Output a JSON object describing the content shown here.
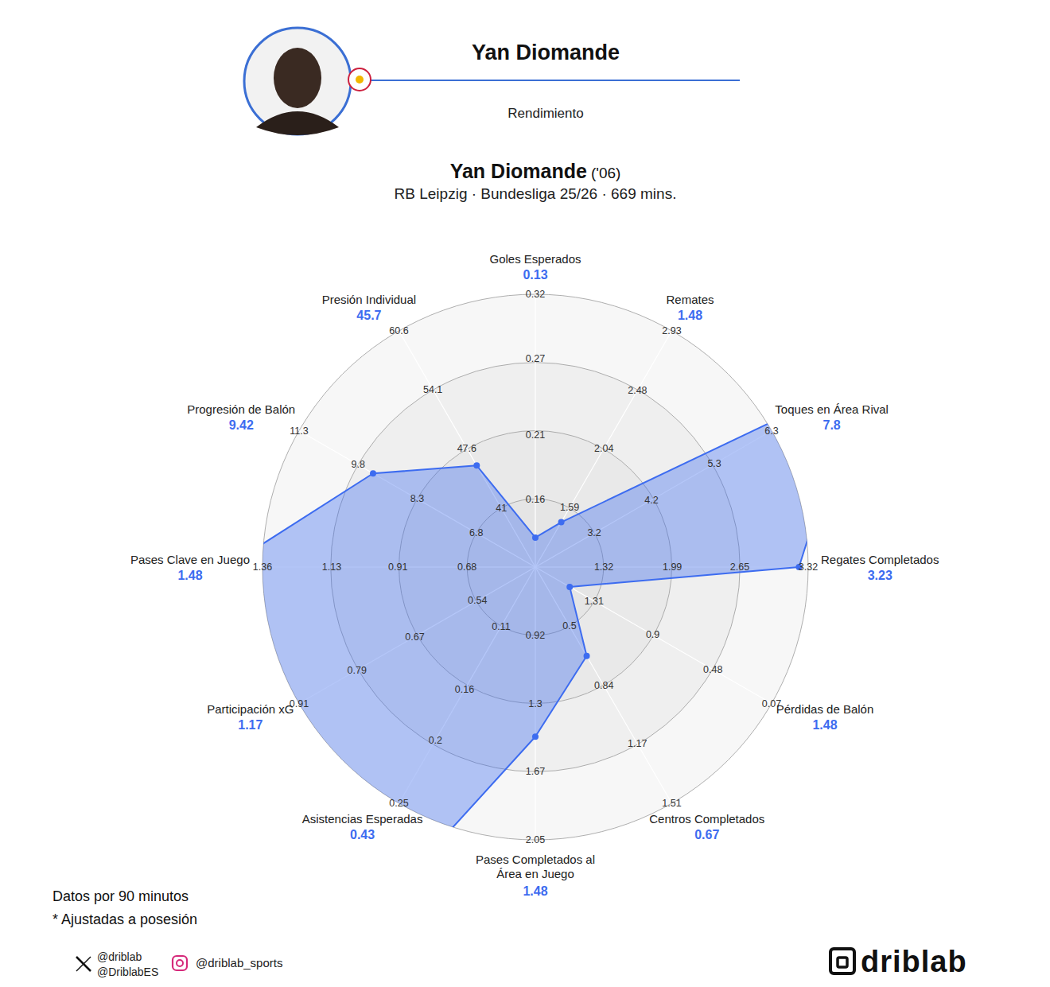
{
  "header": {
    "title": "Yan Diomande",
    "subtitle": "Rendimiento"
  },
  "chart_data": {
    "type": "radar",
    "title": "Yan Diomande",
    "title_suffix": "('06)",
    "subtitle": "RB Leipzig · Bundesliga 25/26 · 669 mins.",
    "categories": [
      "Goles Esperados",
      "Remates",
      "Toques en Área Rival",
      "Regates Completados",
      "Pérdidas de Balón",
      "Centros Completados",
      "Pases Completados al Área en Juego",
      "Asistencias Esperadas",
      "Participación xG",
      "Pases Clave en Juego",
      "Progresión de Balón",
      "Presión Individual"
    ],
    "values": [
      0.13,
      1.48,
      7.8,
      3.23,
      1.48,
      0.67,
      1.48,
      0.43,
      1.17,
      1.48,
      9.42,
      45.7
    ],
    "axis_ranges": [
      [
        0.107,
        0.32
      ],
      [
        1.14,
        2.93
      ],
      [
        2.17,
        6.3
      ],
      [
        0.65,
        3.32
      ],
      [
        1.72,
        0.07
      ],
      [
        0.163,
        1.51
      ],
      [
        0.543,
        2.05
      ],
      [
        0.063,
        0.25
      ],
      [
        0.42,
        0.91
      ],
      [
        0.453,
        1.36
      ],
      [
        5.3,
        11.3
      ],
      [
        34.47,
        60.6
      ]
    ],
    "axis_ticks": [
      [
        0.16,
        0.21,
        0.27,
        0.32
      ],
      [
        1.59,
        2.04,
        2.48,
        2.93
      ],
      [
        3.2,
        4.2,
        5.3,
        6.3
      ],
      [
        1.32,
        1.99,
        2.65,
        3.32
      ],
      [
        1.31,
        0.9,
        0.48,
        0.07
      ],
      [
        0.5,
        0.84,
        1.17,
        1.51
      ],
      [
        0.92,
        1.3,
        1.67,
        2.05
      ],
      [
        0.11,
        0.16,
        0.2,
        0.25
      ],
      [
        0.54,
        0.67,
        0.79,
        0.91
      ],
      [
        0.68,
        0.91,
        1.13,
        1.36
      ],
      [
        6.8,
        8.3,
        9.8,
        11.3
      ],
      [
        41,
        47.6,
        54.1,
        60.6
      ]
    ],
    "color": "#3d6cf0",
    "grid": true,
    "data_labels": true
  },
  "notes": [
    "Datos por 90 minutos",
    "* Ajustadas a posesión"
  ],
  "social": {
    "x": [
      "@driblab",
      "@DriblabES"
    ],
    "instagram": "@driblab_sports"
  },
  "brand": "driblab"
}
